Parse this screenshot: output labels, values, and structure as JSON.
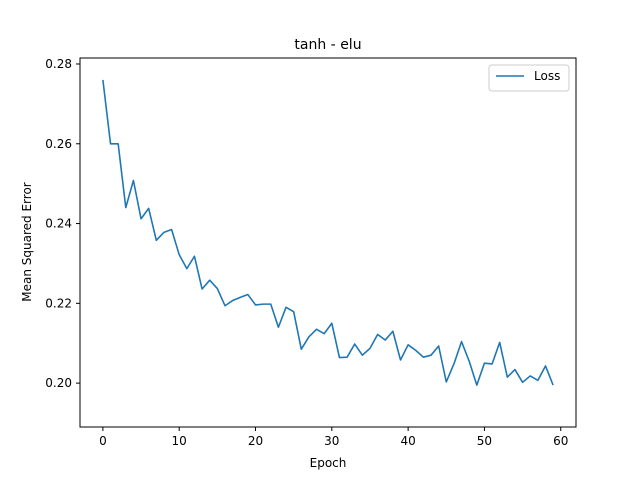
{
  "chart_data": {
    "type": "line",
    "title": "tanh - elu",
    "xlabel": "Epoch",
    "ylabel": "Mean Squared Error",
    "xlim": [
      -3,
      62
    ],
    "ylim": [
      0.189,
      0.2815
    ],
    "xticks": [
      0,
      10,
      20,
      30,
      40,
      50,
      60
    ],
    "yticks": [
      0.2,
      0.22,
      0.24,
      0.26,
      0.28
    ],
    "xtick_labels": [
      "0",
      "10",
      "20",
      "30",
      "40",
      "50",
      "60"
    ],
    "ytick_labels": [
      "0.20",
      "0.22",
      "0.24",
      "0.26",
      "0.28"
    ],
    "grid": false,
    "legend_position": "top-right",
    "series": [
      {
        "name": "Loss",
        "color": "#1f77b4",
        "x": [
          0,
          1,
          2,
          3,
          4,
          5,
          6,
          7,
          8,
          9,
          10,
          11,
          12,
          13,
          14,
          15,
          16,
          17,
          18,
          19,
          20,
          21,
          22,
          23,
          24,
          25,
          26,
          27,
          28,
          29,
          30,
          31,
          32,
          33,
          34,
          35,
          36,
          37,
          38,
          39,
          40,
          41,
          42,
          43,
          44,
          45,
          46,
          47,
          48,
          49,
          50,
          51,
          52,
          53,
          54,
          55,
          56,
          57,
          58,
          59
        ],
        "values": [
          0.276,
          0.26,
          0.26,
          0.244,
          0.2508,
          0.2412,
          0.2438,
          0.2358,
          0.2378,
          0.2385,
          0.2322,
          0.2287,
          0.2318,
          0.2236,
          0.2258,
          0.2237,
          0.2194,
          0.2207,
          0.2215,
          0.2222,
          0.2196,
          0.2198,
          0.2198,
          0.214,
          0.219,
          0.2179,
          0.2085,
          0.2116,
          0.2135,
          0.2124,
          0.215,
          0.2064,
          0.2065,
          0.2098,
          0.207,
          0.2087,
          0.2122,
          0.2108,
          0.213,
          0.2058,
          0.2096,
          0.2082,
          0.2065,
          0.207,
          0.2093,
          0.2003,
          0.2048,
          0.2104,
          0.2055,
          0.1995,
          0.205,
          0.2048,
          0.2102,
          0.2015,
          0.2034,
          0.2002,
          0.2018,
          0.2007,
          0.2043,
          0.1995
        ]
      }
    ]
  }
}
